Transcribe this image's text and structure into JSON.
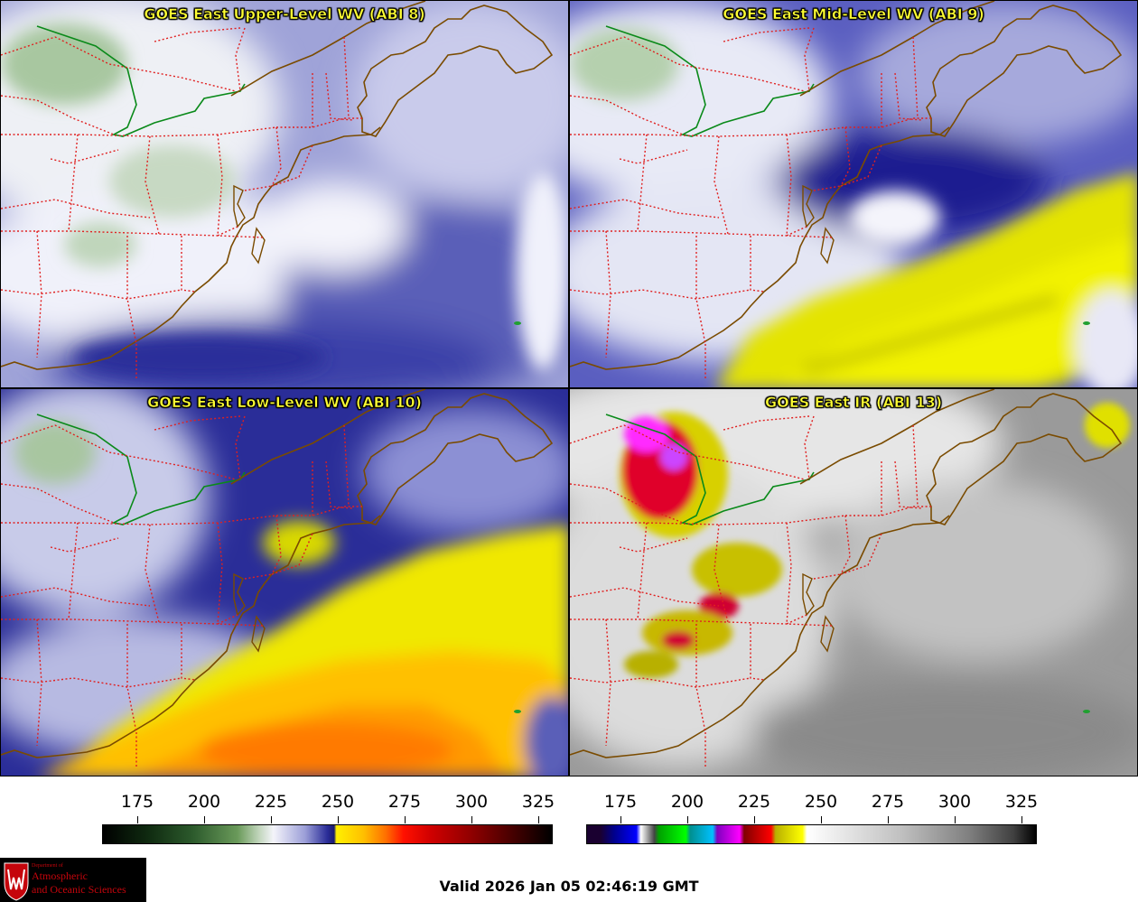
{
  "panels": [
    {
      "title": "GOES East Upper-Level WV (ABI 8)"
    },
    {
      "title": "GOES East Mid-Level WV (ABI 9)"
    },
    {
      "title": "GOES East Low-Level WV (ABI 10)"
    },
    {
      "title": "GOES East IR (ABI 13)"
    }
  ],
  "colorbars": {
    "wv_ticks": [
      "175",
      "200",
      "225",
      "250",
      "275",
      "300",
      "325"
    ],
    "ir_ticks": [
      "175",
      "200",
      "225",
      "250",
      "275",
      "300",
      "325"
    ]
  },
  "logo": {
    "line1": "Department of",
    "line2": "Atmospheric",
    "line3": "and Oceanic Sciences"
  },
  "footer": {
    "valid_text": "Valid 2026 Jan 05 02:46:19 GMT"
  },
  "colors": {
    "wv_deep": "#1a1a8c",
    "wv_moist": "#f2f2ff",
    "wv_dry_yellow": "#e6e600",
    "ir_enhanced_red": "#e0002a",
    "ir_magenta": "#ff00ff",
    "border_red": "#e02020",
    "coast_brown": "#7a4b00",
    "logo_red": "#c5050c"
  }
}
